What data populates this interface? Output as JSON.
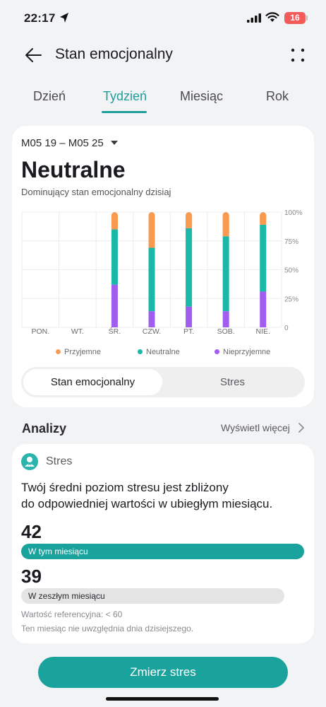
{
  "status_bar": {
    "time": "22:17",
    "battery": "16"
  },
  "header": {
    "title": "Stan emocjonalny"
  },
  "tabs": [
    {
      "label": "Dzień"
    },
    {
      "label": "Tydzień",
      "active": true
    },
    {
      "label": "Miesiąc"
    },
    {
      "label": "Rok"
    }
  ],
  "summary": {
    "date_range": "M05 19 – M05 25",
    "dominant_state": "Neutralne",
    "dominant_caption": "Dominujący stan emocjonalny dzisiaj"
  },
  "chart_data": {
    "type": "bar",
    "stacked": true,
    "categories": [
      "PON.",
      "WT.",
      "ŚR.",
      "CZW.",
      "PT.",
      "SOB.",
      "NIE."
    ],
    "y_ticks": [
      "100%",
      "75%",
      "50%",
      "25%",
      "0"
    ],
    "ylim": [
      0,
      100
    ],
    "grid": true,
    "legend_position": "bottom",
    "series": [
      {
        "name": "Nieprzyjemne",
        "color": "#a15cf0",
        "values": [
          0,
          0,
          37,
          14,
          18,
          14,
          31
        ]
      },
      {
        "name": "Neutralne",
        "color": "#1ab8a6",
        "values": [
          0,
          0,
          48,
          55,
          68,
          65,
          58
        ]
      },
      {
        "name": "Przyjemne",
        "color": "#f89b51",
        "values": [
          0,
          0,
          15,
          31,
          14,
          21,
          11
        ]
      }
    ]
  },
  "legend": {
    "pleasant": "Przyjemne",
    "neutral": "Neutralne",
    "unpleasant": "Nieprzyjemne"
  },
  "segment": {
    "active": "Stan emocjonalny",
    "inactive": "Stres"
  },
  "analysis": {
    "title": "Analizy",
    "see_more": "Wyświetl więcej"
  },
  "stress": {
    "title": "Stres",
    "message_line1": "Twój średni poziom stresu jest zbliżony",
    "message_line2": "do odpowiedniej wartości w ubiegłym miesiącu.",
    "this_month_value": "42",
    "this_month_label": "W tym miesiącu",
    "last_month_value": "39",
    "last_month_label": "W zeszłym miesiącu",
    "reference": "Wartość referencyjna: < 60",
    "note": "Ten miesiąc nie uwzględnia dnia dzisiejszego."
  },
  "colors": {
    "accent": "#1d9e9a",
    "button": "#1aa39d",
    "pleasant": "#f89b51",
    "neutral": "#1ab8a6",
    "unpleasant": "#a15cf0"
  },
  "icons": {
    "location": "location-arrow-icon",
    "signal": "cellular-signal-icon",
    "wifi": "wifi-icon",
    "back": "arrow-left-icon",
    "more": "four-dots-icon",
    "caret": "caret-down-icon",
    "chevron": "chevron-right-icon",
    "stress": "stress-person-icon"
  },
  "action": {
    "measure_label": "Zmierz stres"
  }
}
